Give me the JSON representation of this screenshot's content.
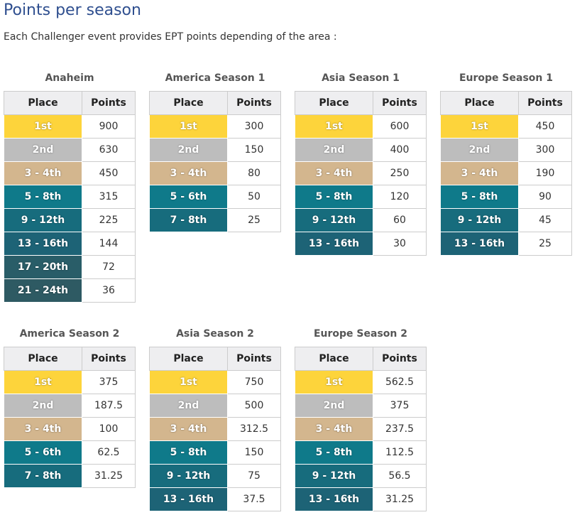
{
  "header": {
    "title": "Points per season",
    "subtitle": "Each Challenger event provides EPT points depending of the area :"
  },
  "tables": [
    {
      "name": "Anaheim",
      "columns": [
        "Place",
        "Points"
      ],
      "rows": [
        [
          "1st",
          "900"
        ],
        [
          "2nd",
          "630"
        ],
        [
          "3 - 4th",
          "450"
        ],
        [
          "5 - 8th",
          "315"
        ],
        [
          "9 - 12th",
          "225"
        ],
        [
          "13 - 16th",
          "144"
        ],
        [
          "17 - 20th",
          "72"
        ],
        [
          "21 - 24th",
          "36"
        ]
      ]
    },
    {
      "name": "America Season 1",
      "columns": [
        "Place",
        "Points"
      ],
      "rows": [
        [
          "1st",
          "300"
        ],
        [
          "2nd",
          "150"
        ],
        [
          "3 - 4th",
          "80"
        ],
        [
          "5 - 6th",
          "50"
        ],
        [
          "7 - 8th",
          "25"
        ]
      ]
    },
    {
      "name": "Asia Season 1",
      "columns": [
        "Place",
        "Points"
      ],
      "rows": [
        [
          "1st",
          "600"
        ],
        [
          "2nd",
          "400"
        ],
        [
          "3 - 4th",
          "250"
        ],
        [
          "5 - 8th",
          "120"
        ],
        [
          "9 - 12th",
          "60"
        ],
        [
          "13 - 16th",
          "30"
        ]
      ]
    },
    {
      "name": "Europe Season 1",
      "columns": [
        "Place",
        "Points"
      ],
      "rows": [
        [
          "1st",
          "450"
        ],
        [
          "2nd",
          "300"
        ],
        [
          "3 - 4th",
          "190"
        ],
        [
          "5 - 8th",
          "90"
        ],
        [
          "9 - 12th",
          "45"
        ],
        [
          "13 - 16th",
          "25"
        ]
      ]
    },
    {
      "name": "America Season 2",
      "columns": [
        "Place",
        "Points"
      ],
      "rows": [
        [
          "1st",
          "375"
        ],
        [
          "2nd",
          "187.5"
        ],
        [
          "3 - 4th",
          "100"
        ],
        [
          "5 - 6th",
          "62.5"
        ],
        [
          "7 - 8th",
          "31.25"
        ]
      ]
    },
    {
      "name": "Asia Season 2",
      "columns": [
        "Place",
        "Points"
      ],
      "rows": [
        [
          "1st",
          "750"
        ],
        [
          "2nd",
          "500"
        ],
        [
          "3 - 4th",
          "312.5"
        ],
        [
          "5 - 8th",
          "150"
        ],
        [
          "9 - 12th",
          "75"
        ],
        [
          "13 - 16th",
          "37.5"
        ]
      ]
    },
    {
      "name": "Europe Season 2",
      "columns": [
        "Place",
        "Points"
      ],
      "rows": [
        [
          "1st",
          "562.5"
        ],
        [
          "2nd",
          "375"
        ],
        [
          "3 - 4th",
          "237.5"
        ],
        [
          "5 - 8th",
          "112.5"
        ],
        [
          "9 - 12th",
          "56.5"
        ],
        [
          "13 - 16th",
          "31.25"
        ]
      ]
    }
  ]
}
